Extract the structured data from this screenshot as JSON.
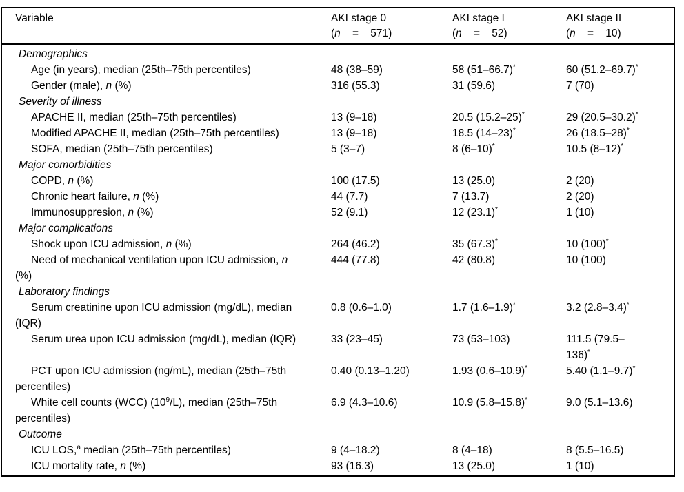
{
  "table": {
    "variable_header": "Variable",
    "columns": [
      {
        "title": "AKI stage 0",
        "n": "(<i>n</i>&nbsp;&nbsp;&nbsp;&nbsp;=&nbsp;&nbsp;&nbsp;&nbsp;571)"
      },
      {
        "title": "AKI stage I",
        "n": "(<i>n</i>&nbsp;&nbsp;&nbsp;&nbsp;=&nbsp;&nbsp;&nbsp;&nbsp;52)"
      },
      {
        "title": "AKI stage II",
        "n": "(<i>n</i>&nbsp;&nbsp;&nbsp;&nbsp;=&nbsp;&nbsp;&nbsp;&nbsp;10)"
      }
    ],
    "sections": [
      {
        "title": "Demographics",
        "rows": [
          {
            "label": "Age (in years), median (25th–75th percentiles)",
            "values": [
              "48 (38–59)",
              "58 (51–66.7)<sup>*</sup>",
              "60 (51.2–69.7)<sup>*</sup>"
            ]
          },
          {
            "label": "Gender (male), <i>n</i> (%)",
            "values": [
              "316 (55.3)",
              "31 (59.6)",
              "7 (70)"
            ]
          }
        ]
      },
      {
        "title": "Severity of illness",
        "rows": [
          {
            "label": "APACHE II, median (25th–75th percentiles)",
            "values": [
              "13 (9–18)",
              "20.5 (15.2–25)<sup>*</sup>",
              "29 (20.5–30.2)<sup>*</sup>"
            ]
          },
          {
            "label": "Modified APACHE II, median (25th–75th percentiles)",
            "values": [
              "13 (9–18)",
              "18.5 (14–23)<sup>*</sup>",
              "26 (18.5–28)<sup>*</sup>"
            ]
          },
          {
            "label": "SOFA, median (25th–75th percentiles)",
            "values": [
              "5 (3–7)",
              "8 (6–10)<sup>*</sup>",
              "10.5 (8–12)<sup>*</sup>"
            ]
          }
        ]
      },
      {
        "title": "Major comorbidities",
        "rows": [
          {
            "label": "COPD, <i>n</i> (%)",
            "values": [
              "100 (17.5)",
              "13 (25.0)",
              "2 (20)"
            ]
          },
          {
            "label": "Chronic heart failure, <i>n</i> (%)",
            "values": [
              "44 (7.7)",
              "7 (13.7)",
              "2 (20)"
            ]
          },
          {
            "label": "Immunosuppresion, <i>n</i> (%)",
            "values": [
              "52 (9.1)",
              "12 (23.1)<sup>*</sup>",
              "1 (10)"
            ]
          }
        ]
      },
      {
        "title": "Major complications",
        "rows": [
          {
            "label": "Shock upon ICU admission, <i>n</i> (%)",
            "values": [
              "264 (46.2)",
              "35 (67.3)<sup>*</sup>",
              "10 (100)<sup>*</sup>"
            ]
          },
          {
            "label": "Need of mechanical ventilation upon ICU admission, <i>n</i> <br>(%)",
            "values": [
              "444 (77.8)",
              "42 (80.8)",
              "10 (100)"
            ]
          }
        ]
      },
      {
        "title": "Laboratory findings",
        "rows": [
          {
            "label": "Serum creatinine upon ICU admission (mg/dL), median <br>(IQR)",
            "values": [
              "0.8 (0.6–1.0)",
              "1.7 (1.6–1.9)<sup>*</sup>",
              "3.2 (2.8–3.4)<sup>*</sup>"
            ]
          },
          {
            "label": "Serum urea upon ICU admission (mg/dL), median (IQR)",
            "values": [
              "33 (23–45)",
              "73 (53–103)",
              "111.5 (79.5–<br>136)<sup>*</sup>"
            ]
          },
          {
            "label": "PCT upon ICU admission (ng/mL), median (25th–75th <br>percentiles)",
            "values": [
              "0.40 (0.13–1.20)",
              "1.93 (0.6–10.9)<sup>*</sup>",
              "5.40 (1.1–9.7)<sup>*</sup>"
            ]
          },
          {
            "label": "White cell counts (WCC) (10<sup>9</sup>/L), median (25th–75th <br>percentiles)",
            "values": [
              "6.9 (4.3–10.6)",
              "10.9 (5.8–15.8)<sup>*</sup>",
              "9.0 (5.1–13.6)"
            ]
          }
        ]
      },
      {
        "title": "Outcome",
        "rows": [
          {
            "label": "ICU LOS,<sup>a</sup> median (25th–75th percentiles)",
            "values": [
              "9 (4–18.2)",
              "8 (4–18)",
              "8 (5.5–16.5)"
            ]
          },
          {
            "label": "ICU mortality rate, <i>n</i> (%)",
            "values": [
              "93 (16.3)",
              "13 (25.0)",
              "1 (10)"
            ]
          }
        ]
      }
    ]
  }
}
